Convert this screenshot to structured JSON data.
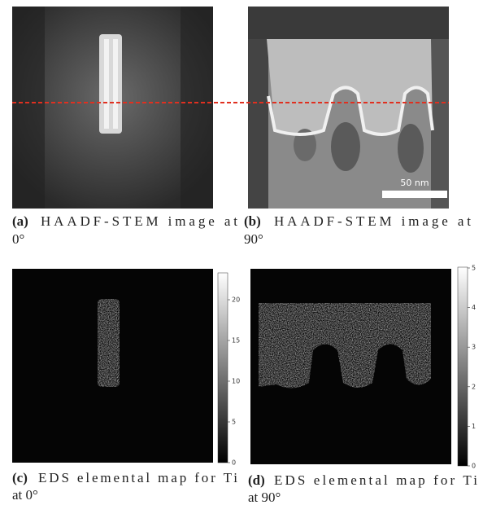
{
  "panels": [
    {
      "label": "(a)",
      "caption": "HAADF-STEM image at",
      "caption_line2": "0°"
    },
    {
      "label": "(b)",
      "caption": "HAADF-STEM image at",
      "caption_line2": "90°",
      "scale_bar": "50 nm"
    },
    {
      "label": "(c)",
      "caption": "EDS elemental map for Ti",
      "caption_line2": "at 0°",
      "colorbar_ticks": [
        0,
        5,
        10,
        15,
        20
      ]
    },
    {
      "label": "(d)",
      "caption": "EDS elemental map for Ti",
      "caption_line2": "at 90°",
      "colorbar_ticks": [
        0,
        1,
        2,
        3,
        4,
        5
      ]
    }
  ]
}
